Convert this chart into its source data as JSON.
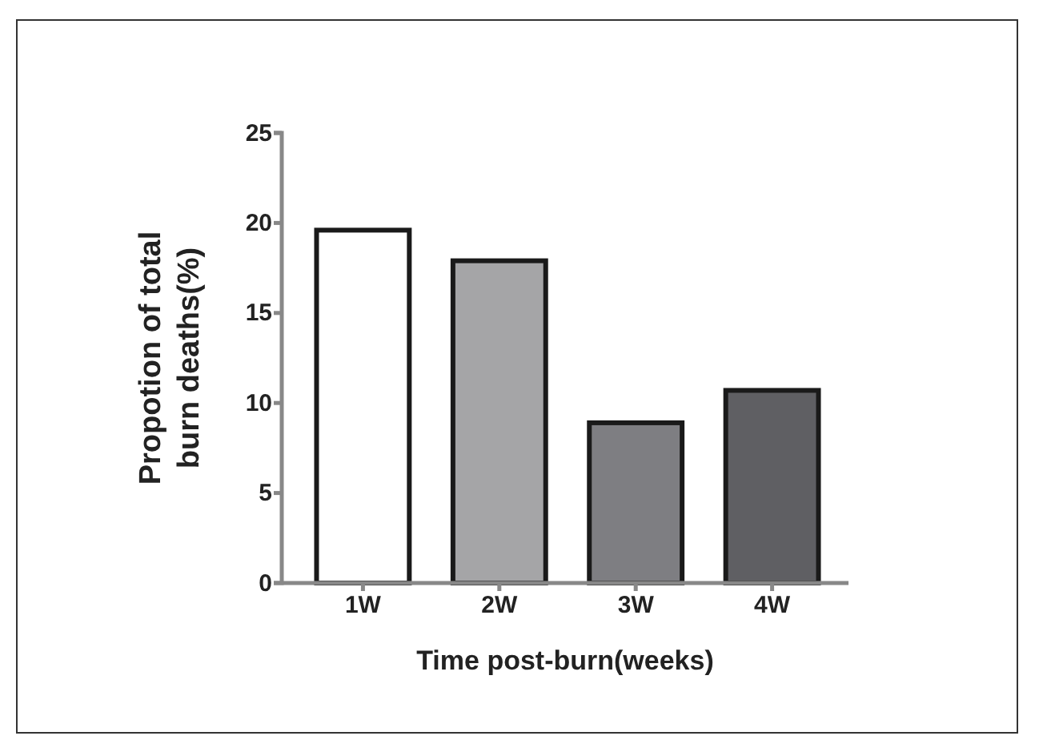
{
  "chart_data": {
    "type": "bar",
    "xlabel": "Time post-burn(weeks)",
    "ylabel": "Propotion of total\nburn deaths(%)",
    "categories": [
      "1W",
      "2W",
      "3W",
      "4W"
    ],
    "values": [
      19.6,
      17.9,
      8.9,
      10.7
    ],
    "colors": [
      "#ffffff",
      "#a5a5a7",
      "#7e7e82",
      "#5f5f63"
    ],
    "ylim": [
      0,
      25
    ],
    "yticks": [
      0,
      5,
      10,
      15,
      20,
      25
    ],
    "grid": false
  }
}
